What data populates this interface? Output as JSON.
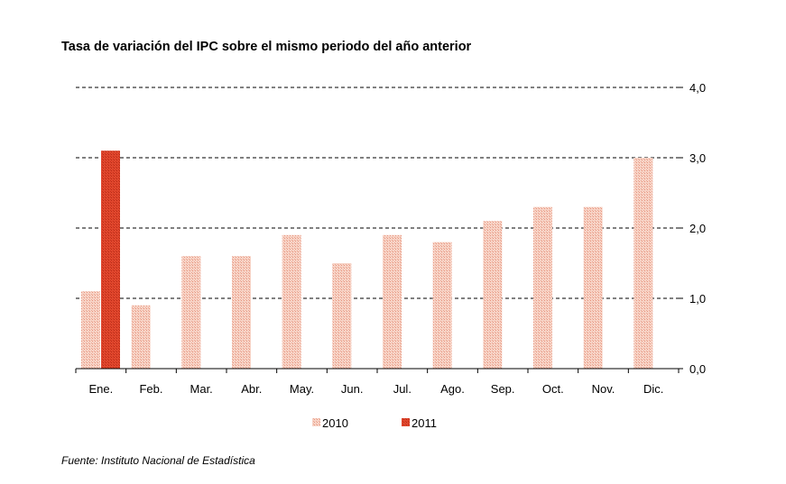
{
  "title": "Tasa de variación del IPC sobre el mismo periodo del año anterior",
  "source": "Fuente: Instituto Nacional de Estadística",
  "chart_data": {
    "type": "bar",
    "categories": [
      "Ene.",
      "Feb.",
      "Mar.",
      "Abr.",
      "May.",
      "Jun.",
      "Jul.",
      "Ago.",
      "Sep.",
      "Oct.",
      "Nov.",
      "Dic."
    ],
    "series": [
      {
        "name": "2010",
        "color": "#f2b8a6",
        "values": [
          1.1,
          0.9,
          1.6,
          1.6,
          1.9,
          1.5,
          1.9,
          1.8,
          2.1,
          2.3,
          2.3,
          3.0
        ]
      },
      {
        "name": "2011",
        "color": "#d93a22",
        "values": [
          3.1,
          null,
          null,
          null,
          null,
          null,
          null,
          null,
          null,
          null,
          null,
          null
        ]
      }
    ],
    "ylim": [
      0,
      4
    ],
    "yticks": [
      "0,0",
      "1,0",
      "2,0",
      "3,0",
      "4,0"
    ],
    "y_axis_side": "right",
    "grid": "horizontal dashed",
    "legend": "bottom-center",
    "xlabel": "",
    "ylabel": ""
  }
}
